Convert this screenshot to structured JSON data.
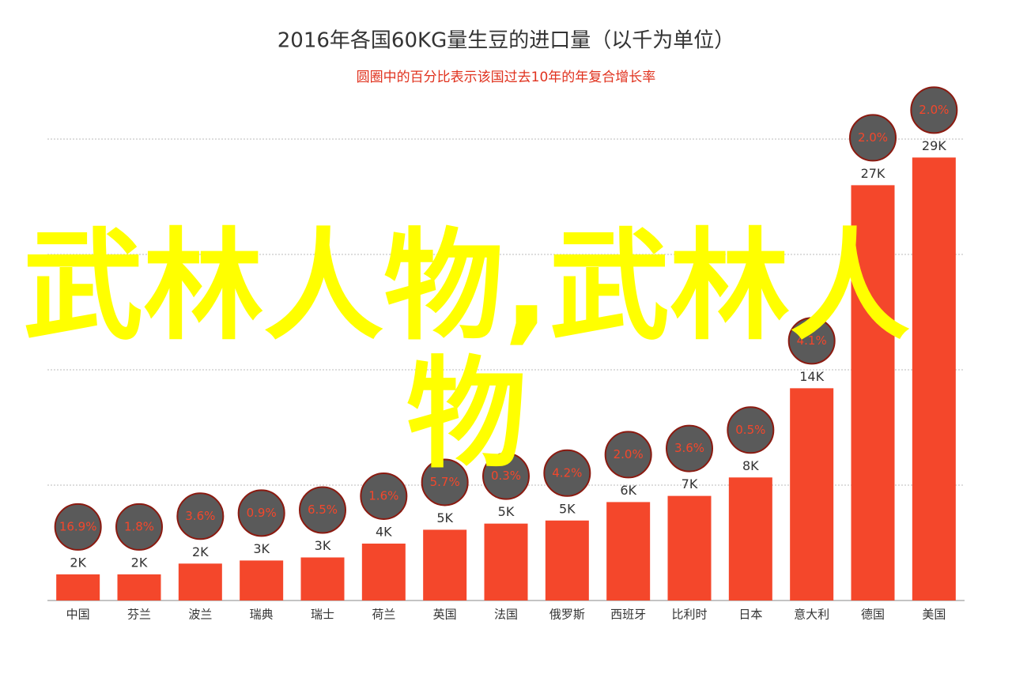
{
  "chart_data": {
    "type": "bar",
    "title": "2016年各国60KG量生豆的进口量（以千为单位）",
    "subtitle": "圆圈中的百分比表示该国过去10年的年复合增长率",
    "categories": [
      "中国",
      "芬兰",
      "波兰",
      "瑞典",
      "瑞士",
      "荷兰",
      "英国",
      "法国",
      "俄罗斯",
      "西班牙",
      "比利时",
      "日本",
      "意大利",
      "德国",
      "美国"
    ],
    "values": [
      1.7,
      1.7,
      2.4,
      2.6,
      2.8,
      3.7,
      4.6,
      5.0,
      5.2,
      6.4,
      6.8,
      8.0,
      13.8,
      27.0,
      28.8
    ],
    "value_labels": [
      "2K",
      "2K",
      "2K",
      "3K",
      "3K",
      "4K",
      "5K",
      "5K",
      "5K",
      "6K",
      "7K",
      "8K",
      "14K",
      "27K",
      "29K"
    ],
    "color": "#f4472b",
    "growth": {
      "values": [
        16.9,
        1.8,
        3.6,
        0.9,
        6.5,
        1.6,
        5.7,
        0.3,
        4.2,
        2.0,
        3.6,
        0.5,
        4.1,
        2.0,
        2.0
      ],
      "value_labels": [
        "16.9%",
        "1.8%",
        "3.6%",
        "0.9%",
        "6.5%",
        "1.6%",
        "5.7%",
        "0.3%",
        "4.2%",
        "2.0%",
        "3.6%",
        "0.5%",
        "4.1%",
        "2.0%",
        "2.0%"
      ],
      "color": "#5a5a5a"
    },
    "ylim": [
      0,
      30
    ],
    "yticks": [
      0,
      7.5,
      15,
      22.5,
      30
    ],
    "grid": true
  },
  "overlay_text": "武林人物,武林人物"
}
